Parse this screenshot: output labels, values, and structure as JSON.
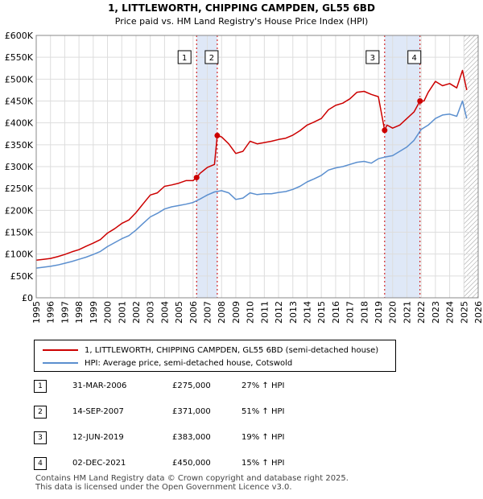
{
  "chart_data": {
    "type": "line",
    "title": "1, LITTLEWORTH, CHIPPING CAMPDEN, GL55 6BD",
    "subtitle": "Price paid vs. HM Land Registry's House Price Index (HPI)",
    "xlabel": "",
    "ylabel": "",
    "xlim": [
      1995,
      2026
    ],
    "ylim": [
      0,
      600000
    ],
    "y_ticks": [
      "£0",
      "£50K",
      "£100K",
      "£150K",
      "£200K",
      "£250K",
      "£300K",
      "£350K",
      "£400K",
      "£450K",
      "£500K",
      "£550K",
      "£600K"
    ],
    "x_ticks": [
      "1995",
      "1996",
      "1997",
      "1998",
      "1999",
      "2000",
      "2001",
      "2002",
      "2003",
      "2004",
      "2005",
      "2006",
      "2007",
      "2008",
      "2009",
      "2010",
      "2011",
      "2012",
      "2013",
      "2014",
      "2015",
      "2016",
      "2017",
      "2018",
      "2019",
      "2020",
      "2021",
      "2022",
      "2023",
      "2024",
      "2025",
      "2026"
    ],
    "grid": true,
    "legend_position": "bottom",
    "series": [
      {
        "name": "1, LITTLEWORTH, CHIPPING CAMPDEN, GL55 6BD (semi-detached house)",
        "color": "#cc0000",
        "x": [
          1995.0,
          1995.5,
          1996.0,
          1996.5,
          1997.0,
          1997.5,
          1998.0,
          1998.5,
          1999.0,
          1999.5,
          2000.0,
          2000.5,
          2001.0,
          2001.5,
          2002.0,
          2002.5,
          2003.0,
          2003.5,
          2004.0,
          2004.5,
          2005.0,
          2005.5,
          2006.0,
          2006.25,
          2006.5,
          2007.0,
          2007.5,
          2007.7,
          2008.0,
          2008.5,
          2009.0,
          2009.5,
          2010.0,
          2010.5,
          2011.0,
          2011.5,
          2012.0,
          2012.5,
          2013.0,
          2013.5,
          2014.0,
          2014.5,
          2015.0,
          2015.5,
          2016.0,
          2016.5,
          2017.0,
          2017.5,
          2018.0,
          2018.5,
          2019.0,
          2019.44,
          2019.6,
          2020.0,
          2020.5,
          2021.0,
          2021.5,
          2021.92,
          2022.2,
          2022.5,
          2023.0,
          2023.5,
          2024.0,
          2024.5,
          2024.9,
          2025.2
        ],
        "y": [
          86000,
          88000,
          90000,
          94000,
          99000,
          105000,
          110000,
          118000,
          125000,
          133000,
          148000,
          158000,
          170000,
          178000,
          195000,
          215000,
          235000,
          240000,
          255000,
          258000,
          262000,
          268000,
          268000,
          275000,
          285000,
          298000,
          305000,
          371000,
          368000,
          352000,
          330000,
          335000,
          358000,
          352000,
          355000,
          358000,
          362000,
          365000,
          372000,
          382000,
          395000,
          402000,
          410000,
          430000,
          440000,
          445000,
          455000,
          470000,
          472000,
          465000,
          460000,
          383000,
          395000,
          388000,
          395000,
          410000,
          425000,
          450000,
          450000,
          470000,
          495000,
          485000,
          490000,
          480000,
          520000,
          475000
        ]
      },
      {
        "name": "HPI: Average price, semi-detached house, Cotswold",
        "color": "#5b8fcf",
        "x": [
          1995.0,
          1995.5,
          1996.0,
          1996.5,
          1997.0,
          1997.5,
          1998.0,
          1998.5,
          1999.0,
          1999.5,
          2000.0,
          2000.5,
          2001.0,
          2001.5,
          2002.0,
          2002.5,
          2003.0,
          2003.5,
          2004.0,
          2004.5,
          2005.0,
          2005.5,
          2006.0,
          2006.5,
          2007.0,
          2007.5,
          2008.0,
          2008.5,
          2009.0,
          2009.5,
          2010.0,
          2010.5,
          2011.0,
          2011.5,
          2012.0,
          2012.5,
          2013.0,
          2013.5,
          2014.0,
          2014.5,
          2015.0,
          2015.5,
          2016.0,
          2016.5,
          2017.0,
          2017.5,
          2018.0,
          2018.5,
          2019.0,
          2019.5,
          2020.0,
          2020.5,
          2021.0,
          2021.5,
          2022.0,
          2022.5,
          2023.0,
          2023.5,
          2024.0,
          2024.5,
          2024.9,
          2025.2
        ],
        "y": [
          68000,
          70000,
          72000,
          75000,
          79000,
          83000,
          88000,
          93000,
          99000,
          106000,
          117000,
          126000,
          135000,
          142000,
          155000,
          170000,
          185000,
          193000,
          203000,
          208000,
          211000,
          214000,
          218000,
          226000,
          235000,
          242000,
          245000,
          240000,
          225000,
          228000,
          240000,
          236000,
          238000,
          238000,
          241000,
          243000,
          248000,
          255000,
          265000,
          272000,
          280000,
          292000,
          297000,
          300000,
          305000,
          310000,
          312000,
          308000,
          318000,
          322000,
          325000,
          335000,
          345000,
          360000,
          385000,
          395000,
          410000,
          418000,
          420000,
          415000,
          450000,
          410000
        ]
      }
    ],
    "sales": [
      {
        "label": "1",
        "x": 2006.25,
        "y": 275000,
        "date": "31-MAR-2006",
        "price": "£275,000",
        "hpi": "27% ↑ HPI"
      },
      {
        "label": "2",
        "x": 2007.7,
        "y": 371000,
        "date": "14-SEP-2007",
        "price": "£371,000",
        "hpi": "51% ↑ HPI"
      },
      {
        "label": "3",
        "x": 2019.44,
        "y": 383000,
        "date": "12-JUN-2019",
        "price": "£383,000",
        "hpi": "19% ↑ HPI"
      },
      {
        "label": "4",
        "x": 2021.92,
        "y": 450000,
        "date": "02-DEC-2021",
        "price": "£450,000",
        "hpi": "15% ↑ HPI"
      }
    ],
    "shaded_ranges": [
      [
        2006.25,
        2007.7
      ],
      [
        2019.44,
        2021.92
      ]
    ],
    "future_hatch_from": 2025.0
  },
  "legend": {
    "property_label": "1, LITTLEWORTH, CHIPPING CAMPDEN, GL55 6BD (semi-detached house)",
    "hpi_label": "HPI: Average price, semi-detached house, Cotswold"
  },
  "footer": {
    "line1": "Contains HM Land Registry data © Crown copyright and database right 2025.",
    "line2": "This data is licensed under the Open Government Licence v3.0."
  },
  "colors": {
    "property": "#cc0000",
    "hpi": "#5b8fcf",
    "shade": "#dfe8f7",
    "grid": "#dddddd"
  }
}
